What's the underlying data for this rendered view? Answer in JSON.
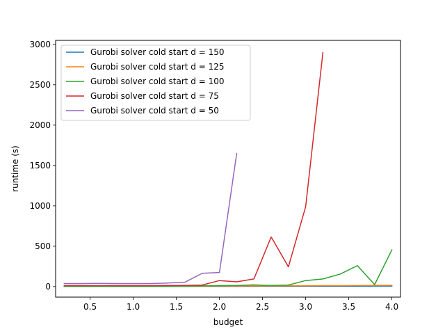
{
  "chart_data": {
    "type": "line",
    "title": "",
    "xlabel": "budget",
    "ylabel": "runtime (s)",
    "xlim": [
      0.1,
      4.1
    ],
    "ylim": [
      -130,
      3050
    ],
    "xticks": [
      0.5,
      1.0,
      1.5,
      2.0,
      2.5,
      3.0,
      3.5,
      4.0
    ],
    "xtick_labels": [
      "0.5",
      "1.0",
      "1.5",
      "2.0",
      "2.5",
      "3.0",
      "3.5",
      "4.0"
    ],
    "yticks": [
      0,
      500,
      1000,
      1500,
      2000,
      2500,
      3000
    ],
    "ytick_labels": [
      "0",
      "500",
      "1000",
      "1500",
      "2000",
      "2500",
      "3000"
    ],
    "grid": false,
    "legend_position": "top-left",
    "series": [
      {
        "name": "Gurobi solver cold start d = 150",
        "color": "#1f77b4",
        "x": [
          0.2,
          0.4,
          0.6,
          0.8,
          1.0,
          1.2,
          1.4,
          1.6,
          1.8,
          2.0,
          2.2,
          2.4,
          2.6,
          2.8,
          3.0,
          3.2,
          3.4,
          3.6,
          3.8,
          4.0
        ],
        "y": [
          3,
          3,
          3,
          3,
          3,
          3,
          3,
          3,
          4,
          4,
          4,
          5,
          5,
          5,
          5,
          6,
          6,
          6,
          7,
          7
        ]
      },
      {
        "name": "Gurobi solver cold start d = 125",
        "color": "#ff7f0e",
        "x": [
          0.2,
          0.4,
          0.6,
          0.8,
          1.0,
          1.2,
          1.4,
          1.6,
          1.8,
          2.0,
          2.2,
          2.4,
          2.6,
          2.8,
          3.0,
          3.2,
          3.4,
          3.6,
          3.8,
          4.0
        ],
        "y": [
          5,
          5,
          5,
          5,
          5,
          5,
          6,
          6,
          7,
          8,
          8,
          9,
          9,
          10,
          10,
          12,
          12,
          13,
          15,
          16
        ]
      },
      {
        "name": "Gurobi solver cold start d = 100",
        "color": "#2ca02c",
        "x": [
          0.2,
          0.4,
          0.6,
          0.8,
          1.0,
          1.2,
          1.4,
          1.6,
          1.8,
          2.0,
          2.2,
          2.4,
          2.6,
          2.8,
          3.0,
          3.2,
          3.4,
          3.6,
          3.8,
          4.0
        ],
        "y": [
          6,
          6,
          6,
          6,
          6,
          6,
          7,
          8,
          10,
          12,
          14,
          22,
          14,
          20,
          75,
          95,
          155,
          260,
          25,
          455
        ]
      },
      {
        "name": "Gurobi solver cold start d = 75",
        "color": "#d62728",
        "x": [
          0.2,
          0.4,
          0.6,
          0.8,
          1.0,
          1.2,
          1.4,
          1.6,
          1.8,
          2.0,
          2.2,
          2.4,
          2.6,
          2.8,
          3.0,
          3.2
        ],
        "y": [
          12,
          12,
          12,
          12,
          12,
          12,
          14,
          15,
          20,
          75,
          60,
          95,
          615,
          245,
          990,
          2900
        ]
      },
      {
        "name": "Gurobi solver cold start d = 50",
        "color": "#9467bd",
        "x": [
          0.2,
          0.4,
          0.6,
          0.8,
          1.0,
          1.2,
          1.4,
          1.6,
          1.8,
          2.0,
          2.2
        ],
        "y": [
          38,
          38,
          40,
          38,
          38,
          38,
          45,
          55,
          165,
          175,
          1650
        ]
      }
    ]
  }
}
